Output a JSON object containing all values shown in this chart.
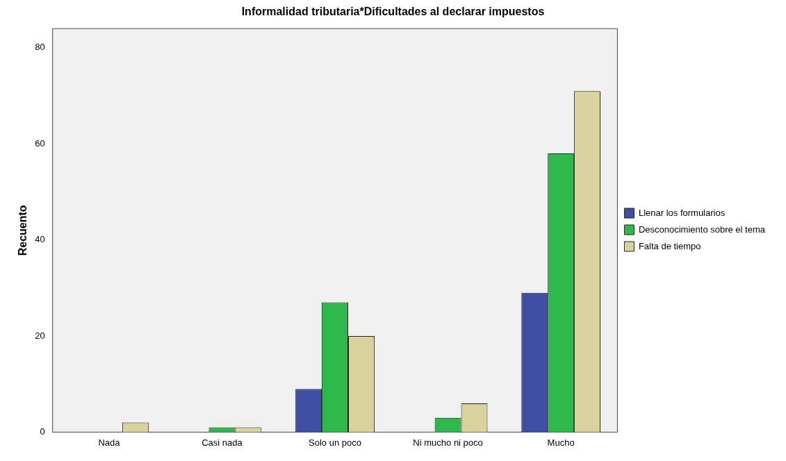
{
  "chart_data": {
    "type": "bar",
    "title": "Informalidad tributaria*Dificultades al declarar impuestos",
    "ylabel": "Recuento",
    "categories": [
      "Nada",
      "Casi nada",
      "Solo un poco",
      "Ni mucho ni poco",
      "Mucho"
    ],
    "series": [
      {
        "name": "Llenar los formularios",
        "color": "#3f4fa3",
        "values": [
          0,
          0,
          9,
          0,
          29
        ]
      },
      {
        "name": "Desconocimiento sobre el tema",
        "color": "#2fb84a",
        "values": [
          0,
          1,
          27,
          3,
          58
        ]
      },
      {
        "name": "Falta de tiempo",
        "color": "#d8d29c",
        "values": [
          2,
          1,
          20,
          6,
          71
        ]
      }
    ],
    "ylim": [
      0,
      84
    ],
    "yticks": [
      0,
      20,
      40,
      60,
      80
    ],
    "grid": false,
    "legend": "right"
  }
}
